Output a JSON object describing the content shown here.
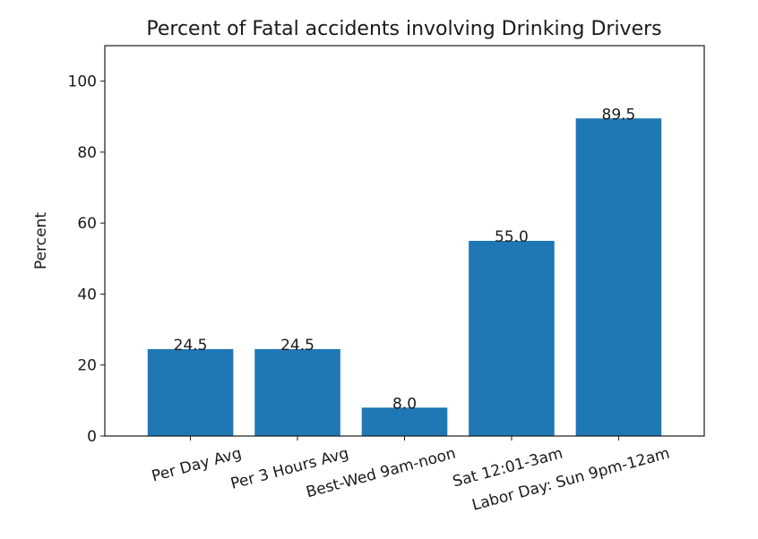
{
  "chart_data": {
    "type": "bar",
    "title": "Percent of Fatal accidents involving Drinking Drivers",
    "xlabel": "",
    "ylabel": "Percent",
    "categories": [
      "Per Day Avg",
      "Per 3 Hours Avg",
      "Best-Wed 9am-noon",
      "Sat 12:01-3am",
      "Labor Day: Sun 9pm-12am"
    ],
    "values": [
      24.5,
      24.5,
      8.0,
      55.0,
      89.5
    ],
    "data_labels": [
      "24.5",
      "24.5",
      "8.0",
      "55.0",
      "89.5"
    ],
    "ylim": [
      0,
      110
    ],
    "yticks": [
      0,
      20,
      40,
      60,
      80,
      100
    ],
    "grid": false,
    "legend": "none",
    "colors": {
      "bar": "#1f77b4",
      "axes": "#1a1a1a"
    }
  }
}
